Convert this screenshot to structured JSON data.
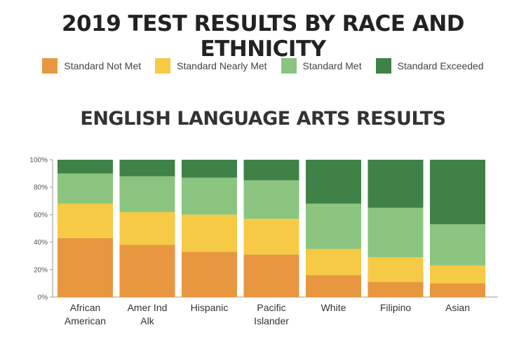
{
  "title": "2019 TEST RESULTS BY RACE AND ETHNICITY",
  "legend": [
    {
      "label": "Standard Not Met",
      "color": "#e8963f"
    },
    {
      "label": "Standard Nearly Met",
      "color": "#f6ca45"
    },
    {
      "label": "Standard Met",
      "color": "#8bc47f"
    },
    {
      "label": "Standard Exceeded",
      "color": "#3f8248"
    }
  ],
  "chart_data": {
    "type": "bar",
    "stacked": true,
    "title": "ENGLISH LANGUAGE ARTS RESULTS",
    "categories": [
      [
        "African",
        "American"
      ],
      [
        "Amer Ind",
        "Alk"
      ],
      [
        "Hispanic"
      ],
      [
        "Pacific",
        "Islander"
      ],
      [
        "White"
      ],
      [
        "Filipino"
      ],
      [
        "Asian"
      ]
    ],
    "series": [
      {
        "name": "Standard Not Met",
        "color": "#e8963f",
        "values": [
          43,
          38,
          33,
          31,
          16,
          11,
          10
        ]
      },
      {
        "name": "Standard Nearly Met",
        "color": "#f6ca45",
        "values": [
          25,
          24,
          27,
          26,
          19,
          18,
          13
        ]
      },
      {
        "name": "Standard Met",
        "color": "#8bc47f",
        "values": [
          22,
          26,
          27,
          28,
          33,
          36,
          30
        ]
      },
      {
        "name": "Standard Exceeded",
        "color": "#3f8248",
        "values": [
          10,
          12,
          13,
          15,
          32,
          35,
          47
        ]
      }
    ],
    "yticks": [
      "0%",
      "20%",
      "40%",
      "60%",
      "80%",
      "100%"
    ],
    "ylim": [
      0,
      100
    ],
    "legend_position": "top-center",
    "grid": false
  }
}
